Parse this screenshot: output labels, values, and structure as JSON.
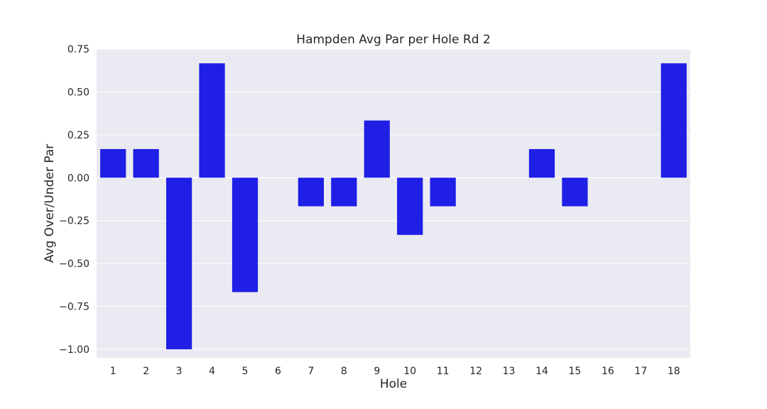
{
  "chart_data": {
    "type": "bar",
    "title": "Hampden Avg Par per Hole Rd 2",
    "xlabel": "Hole",
    "ylabel": "Avg Over/Under Par",
    "categories": [
      "1",
      "2",
      "3",
      "4",
      "5",
      "6",
      "7",
      "8",
      "9",
      "10",
      "11",
      "12",
      "13",
      "14",
      "15",
      "16",
      "17",
      "18"
    ],
    "values": [
      0.1667,
      0.1667,
      -1.0,
      0.6667,
      -0.6667,
      0.0,
      -0.1667,
      -0.1667,
      0.3333,
      -0.3333,
      -0.1667,
      0.0,
      0.0,
      0.1667,
      -0.1667,
      0.0,
      0.0,
      0.6667
    ],
    "yticks": [
      "0.75",
      "0.50",
      "0.25",
      "0.00",
      "−0.25",
      "−0.50",
      "−0.75",
      "−1.00"
    ],
    "ytick_values": [
      0.75,
      0.5,
      0.25,
      0.0,
      -0.25,
      -0.5,
      -0.75,
      -1.0
    ],
    "ylim": [
      -1.05,
      0.75
    ],
    "grid": true,
    "colors": {
      "bar": "#1f1fe6",
      "background": "#eaeaf2",
      "grid": "#ffffff"
    }
  }
}
